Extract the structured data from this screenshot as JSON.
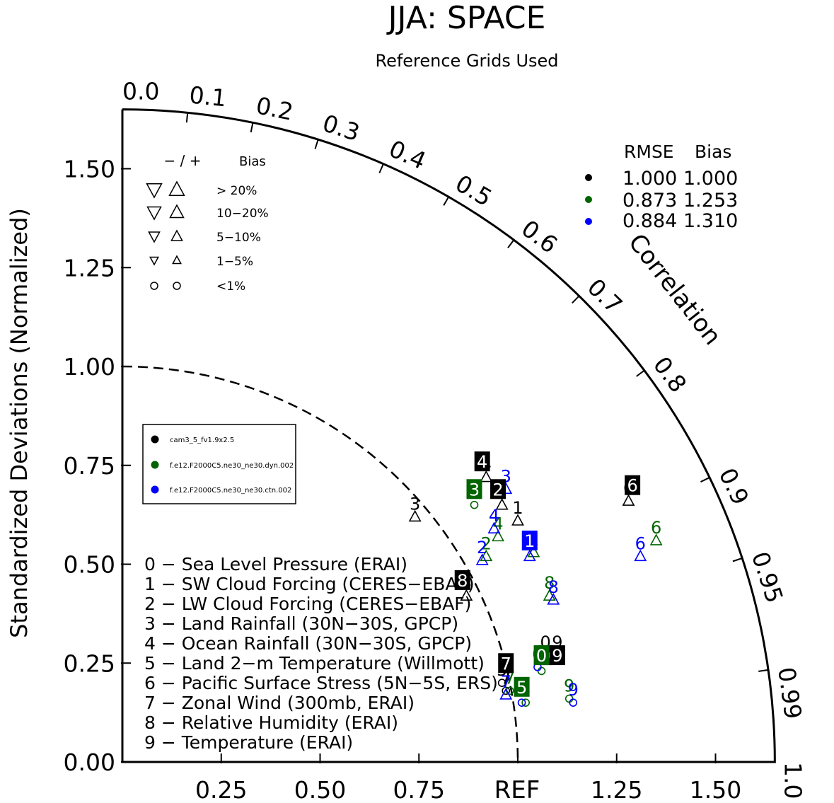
{
  "chart_data": {
    "type": "scatter",
    "title": "JJA: SPACE",
    "subtitle": "Reference Grids Used",
    "ylabel": "Standardized Deviations (Normalized)",
    "correlation_label": "Correlation",
    "xlim": [
      0,
      1.65
    ],
    "ylim": [
      0,
      1.65
    ],
    "ref_label": "REF",
    "x_ticks": [
      "0.25",
      "0.50",
      "0.75",
      "1.25",
      "1.50"
    ],
    "x_tick_values": [
      0.25,
      0.5,
      0.75,
      1.25,
      1.5
    ],
    "y_ticks": [
      "0.00",
      "0.25",
      "0.50",
      "0.75",
      "1.00",
      "1.25",
      "1.50"
    ],
    "y_tick_values": [
      0,
      0.25,
      0.5,
      0.75,
      1.0,
      1.25,
      1.5
    ],
    "corr_ticks": [
      "0.0",
      "0.1",
      "0.2",
      "0.3",
      "0.4",
      "0.5",
      "0.6",
      "0.7",
      "0.8",
      "0.9",
      "0.95",
      "0.99",
      "1.0"
    ],
    "corr_tick_values": [
      0.0,
      0.1,
      0.2,
      0.3,
      0.4,
      0.5,
      0.6,
      0.7,
      0.8,
      0.9,
      0.95,
      0.99,
      1.0
    ],
    "bias_legend": {
      "header_sign": "− / +",
      "header_bias": "Bias",
      "rows": [
        "> 20%",
        "10−20%",
        "5−10%",
        "1−5%",
        "<1%"
      ]
    },
    "rmse_table": {
      "header_rmse": "RMSE",
      "header_bias": "Bias",
      "rows": [
        {
          "rmse": "1.000",
          "bias": "1.000",
          "color": "#000000"
        },
        {
          "rmse": "0.873",
          "bias": "1.253",
          "color": "#006400"
        },
        {
          "rmse": "0.884",
          "bias": "1.310",
          "color": "#0000ff"
        }
      ]
    },
    "series": [
      {
        "name": "cam3_5_fv1.9x2.5",
        "color": "#000000",
        "points": [
          {
            "label": "0",
            "x": 1.07,
            "y": 0.27,
            "marker": "circle"
          },
          {
            "label": "1",
            "x": 1.0,
            "y": 0.61,
            "marker": "up"
          },
          {
            "label": "2",
            "x": 0.96,
            "y": 0.65,
            "marker": "up"
          },
          {
            "label": "3",
            "x": 0.74,
            "y": 0.62,
            "marker": "up"
          },
          {
            "label": "4",
            "x": 0.92,
            "y": 0.72,
            "marker": "up"
          },
          {
            "label": "5",
            "x": 0.96,
            "y": 0.2,
            "marker": "circle"
          },
          {
            "label": "6",
            "x": 1.28,
            "y": 0.66,
            "marker": "up"
          },
          {
            "label": "7",
            "x": 0.97,
            "y": 0.18,
            "marker": "circle"
          },
          {
            "label": "8",
            "x": 0.87,
            "y": 0.42,
            "marker": "up"
          },
          {
            "label": "9",
            "x": 1.1,
            "y": 0.27,
            "marker": "circle"
          }
        ]
      },
      {
        "name": "f.e12.F2000C5.ne30_ne30.dyn.002",
        "color": "#006400",
        "points": [
          {
            "label": "0",
            "x": 1.06,
            "y": 0.23,
            "marker": "circle"
          },
          {
            "label": "1",
            "x": 1.04,
            "y": 0.53,
            "marker": "up"
          },
          {
            "label": "2",
            "x": 0.92,
            "y": 0.52,
            "marker": "up"
          },
          {
            "label": "3",
            "x": 0.89,
            "y": 0.65,
            "marker": "circle"
          },
          {
            "label": "4",
            "x": 0.95,
            "y": 0.57,
            "marker": "up"
          },
          {
            "label": "5",
            "x": 1.02,
            "y": 0.15,
            "marker": "circle"
          },
          {
            "label": "6",
            "x": 1.35,
            "y": 0.56,
            "marker": "up"
          },
          {
            "label": "7",
            "x": 0.98,
            "y": 0.18,
            "marker": "circle"
          },
          {
            "label": "8",
            "x": 1.08,
            "y": 0.42,
            "marker": "up"
          },
          {
            "label": "9",
            "x": 1.13,
            "y": 0.16,
            "marker": "circle"
          }
        ]
      },
      {
        "name": "f.e12.F2000C5.ne30_ne30.ctn.002",
        "color": "#0000ff",
        "points": [
          {
            "label": "0",
            "x": 1.05,
            "y": 0.24,
            "marker": "circle"
          },
          {
            "label": "1",
            "x": 1.03,
            "y": 0.52,
            "marker": "up"
          },
          {
            "label": "2",
            "x": 0.91,
            "y": 0.51,
            "marker": "up"
          },
          {
            "label": "3",
            "x": 0.97,
            "y": 0.69,
            "marker": "up"
          },
          {
            "label": "4",
            "x": 0.94,
            "y": 0.59,
            "marker": "up"
          },
          {
            "label": "5",
            "x": 1.01,
            "y": 0.15,
            "marker": "circle"
          },
          {
            "label": "6",
            "x": 1.31,
            "y": 0.52,
            "marker": "up"
          },
          {
            "label": "7",
            "x": 0.97,
            "y": 0.17,
            "marker": "up"
          },
          {
            "label": "8",
            "x": 1.09,
            "y": 0.41,
            "marker": "up"
          },
          {
            "label": "9",
            "x": 1.14,
            "y": 0.15,
            "marker": "circle"
          }
        ]
      }
    ],
    "variables": [
      "0 − Sea Level Pressure (ERAI)",
      "1 − SW Cloud Forcing (CERES−EBAF)",
      "2 − LW Cloud Forcing (CERES−EBAF)",
      "3 − Land Rainfall (30N−30S, GPCP)",
      "4 − Ocean Rainfall (30N−30S, GPCP)",
      "5 − Land 2−m Temperature (Willmott)",
      "6 − Pacific Surface Stress (5N−5S, ERS)",
      "7 − Zonal Wind (300mb, ERAI)",
      "8 − Relative Humidity (ERAI)",
      "9 − Temperature (ERAI)"
    ],
    "boxed_labels": [
      {
        "series": 0,
        "label": "0",
        "x": 1.07,
        "y": 0.27
      },
      {
        "series": 0,
        "label": "2",
        "x": 0.95,
        "y": 0.69
      },
      {
        "series": 0,
        "label": "4",
        "x": 0.91,
        "y": 0.76
      },
      {
        "series": 0,
        "label": "6",
        "x": 1.29,
        "y": 0.7
      },
      {
        "series": 0,
        "label": "7",
        "x": 0.97,
        "y": 0.25
      },
      {
        "series": 0,
        "label": "8",
        "x": 0.86,
        "y": 0.46
      },
      {
        "series": 0,
        "label": "9",
        "x": 1.1,
        "y": 0.27
      },
      {
        "series": 1,
        "label": "0",
        "x": 1.06,
        "y": 0.27
      },
      {
        "series": 1,
        "label": "3",
        "x": 0.89,
        "y": 0.69
      },
      {
        "series": 1,
        "label": "5",
        "x": 1.01,
        "y": 0.19
      },
      {
        "series": 2,
        "label": "1",
        "x": 1.03,
        "y": 0.56
      }
    ]
  }
}
